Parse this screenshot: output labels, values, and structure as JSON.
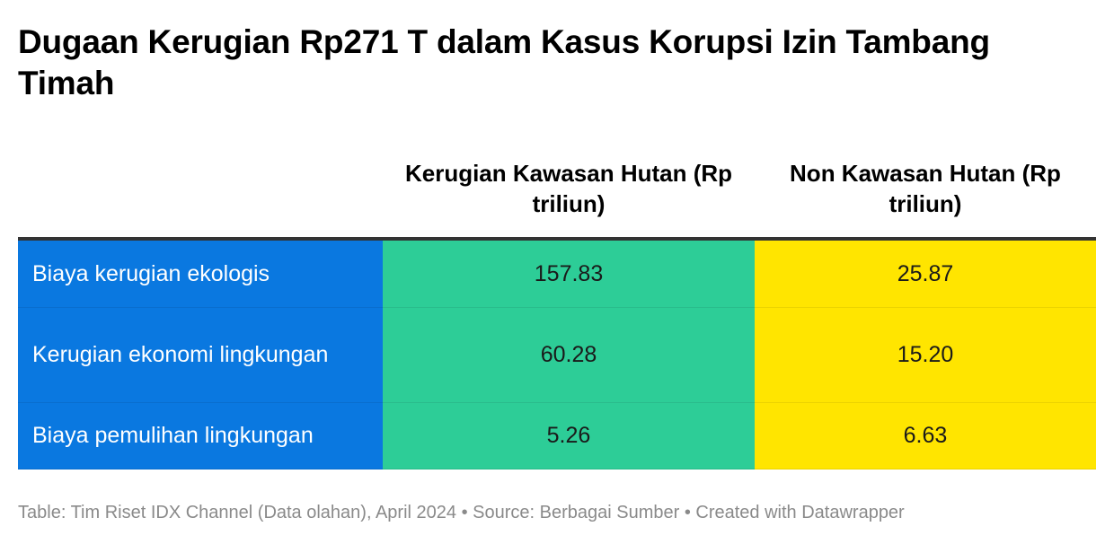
{
  "title": "Dugaan Kerugian Rp271 T dalam Kasus Korupsi Izin Tambang Timah",
  "chart_data": {
    "type": "table",
    "title": "Dugaan Kerugian Rp271 T dalam Kasus Korupsi Izin Tambang Timah",
    "columns": [
      "",
      "Kerugian Kawasan Hutan (Rp triliun)",
      "Non Kawasan Hutan (Rp triliun)"
    ],
    "rows": [
      {
        "label": "Biaya kerugian ekologis",
        "values": [
          "157.83",
          "25.87"
        ]
      },
      {
        "label": "Kerugian ekonomi lingkungan",
        "values": [
          "60.28",
          "15.20"
        ]
      },
      {
        "label": "Biaya pemulihan lingkungan",
        "values": [
          "5.26",
          "6.63"
        ]
      }
    ],
    "colors": {
      "label_column": "#0a78e0",
      "kawasan_hutan": "#2dcd97",
      "non_kawasan_hutan": "#ffe500"
    }
  },
  "footer": "Table: Tim Riset IDX Channel (Data olahan), April 2024 • Source: Berbagai Sumber • Created with Datawrapper"
}
